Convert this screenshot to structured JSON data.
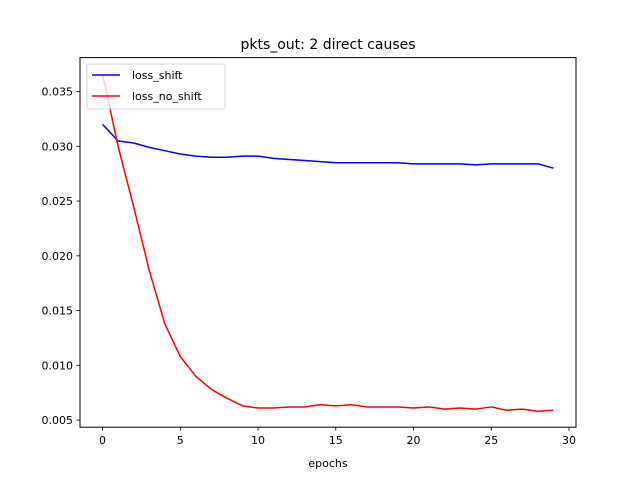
{
  "chart_data": {
    "type": "line",
    "title": "pkts_out: 2 direct causes",
    "xlabel": "epochs",
    "ylabel": "",
    "xlim": [
      -1.45,
      30.45
    ],
    "ylim": [
      0.00435,
      0.0381
    ],
    "x_ticks": [
      0,
      5,
      10,
      15,
      20,
      25,
      30
    ],
    "x_tick_labels": [
      "0",
      "5",
      "10",
      "15",
      "20",
      "25",
      "30"
    ],
    "y_ticks": [
      0.005,
      0.01,
      0.015,
      0.02,
      0.025,
      0.03,
      0.035
    ],
    "y_tick_labels": [
      "0.005",
      "0.010",
      "0.015",
      "0.020",
      "0.025",
      "0.030",
      "0.035"
    ],
    "grid": false,
    "legend_position": "top-left",
    "x": [
      0,
      1,
      2,
      3,
      4,
      5,
      6,
      7,
      8,
      9,
      10,
      11,
      12,
      13,
      14,
      15,
      16,
      17,
      18,
      19,
      20,
      21,
      22,
      23,
      24,
      25,
      26,
      27,
      28,
      29
    ],
    "series": [
      {
        "name": "loss_shift",
        "color": "#0000ff",
        "values": [
          0.032,
          0.0305,
          0.0303,
          0.0299,
          0.0296,
          0.0293,
          0.0291,
          0.029,
          0.029,
          0.0291,
          0.0291,
          0.0289,
          0.0288,
          0.0287,
          0.0286,
          0.0285,
          0.0285,
          0.0285,
          0.0285,
          0.0285,
          0.0284,
          0.0284,
          0.0284,
          0.0284,
          0.0283,
          0.0284,
          0.0284,
          0.0284,
          0.0284,
          0.028
        ]
      },
      {
        "name": "loss_no_shift",
        "color": "#ff0000",
        "values": [
          0.0366,
          0.03,
          0.0245,
          0.0187,
          0.0138,
          0.0108,
          0.009,
          0.0078,
          0.007,
          0.0063,
          0.0061,
          0.0061,
          0.0062,
          0.0062,
          0.0064,
          0.0063,
          0.0064,
          0.0062,
          0.0062,
          0.0062,
          0.0061,
          0.0062,
          0.006,
          0.0061,
          0.006,
          0.0062,
          0.0059,
          0.006,
          0.0058,
          0.0059
        ]
      }
    ]
  }
}
